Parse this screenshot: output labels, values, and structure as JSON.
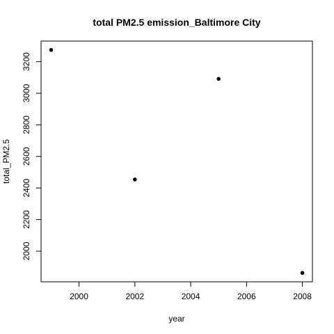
{
  "chart_data": {
    "type": "scatter",
    "title": "total PM2.5 emission_Baltimore City",
    "xlabel": "year",
    "ylabel": "total_PM2.5",
    "x": [
      1999,
      2002,
      2005,
      2008
    ],
    "y": [
      3274.18,
      2453.92,
      3091.35,
      1862.28
    ],
    "xlim": [
      1999,
      2008
    ],
    "ylim": [
      1862.28,
      3274.18
    ],
    "xticks": [
      2000,
      2002,
      2004,
      2006,
      2008
    ],
    "yticks": [
      2000,
      2200,
      2400,
      2600,
      2800,
      3000,
      3200
    ],
    "grid": false,
    "legend": "none",
    "point_color": "#000000"
  }
}
